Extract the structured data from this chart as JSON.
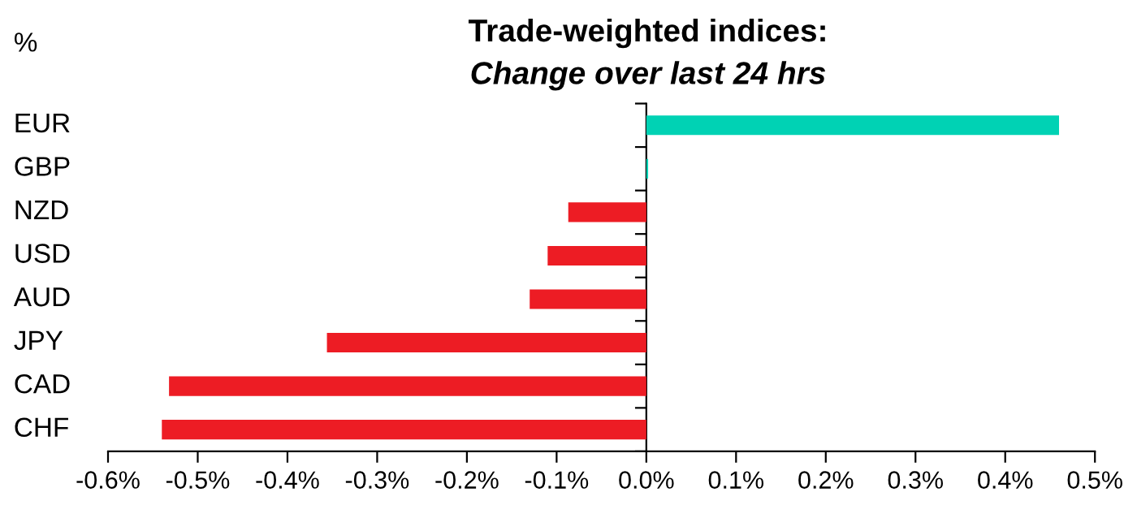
{
  "chart_data": {
    "type": "bar",
    "orientation": "horizontal",
    "title": "Trade-weighted indices:",
    "subtitle": "Change over last 24 hrs",
    "ylabel": "%",
    "categories": [
      "EUR",
      "GBP",
      "NZD",
      "USD",
      "AUD",
      "JPY",
      "CAD",
      "CHF"
    ],
    "values": [
      0.46,
      0.002,
      -0.087,
      -0.11,
      -0.13,
      -0.356,
      -0.532,
      -0.54
    ],
    "colors": [
      "#00d2b4",
      "#00d2b4",
      "#ed1c24",
      "#ed1c24",
      "#ed1c24",
      "#ed1c24",
      "#ed1c24",
      "#ed1c24"
    ],
    "xlim": [
      -0.6,
      0.5
    ],
    "xticks": [
      {
        "value": -0.6,
        "label": "-0.6%"
      },
      {
        "value": -0.5,
        "label": "-0.5%"
      },
      {
        "value": -0.4,
        "label": "-0.4%"
      },
      {
        "value": -0.3,
        "label": "-0.3%"
      },
      {
        "value": -0.2,
        "label": "-0.2%"
      },
      {
        "value": -0.1,
        "label": "-0.1%"
      },
      {
        "value": 0.0,
        "label": "0.0%"
      },
      {
        "value": 0.1,
        "label": "0.1%"
      },
      {
        "value": 0.2,
        "label": "0.2%"
      },
      {
        "value": 0.3,
        "label": "0.3%"
      },
      {
        "value": 0.4,
        "label": "0.4%"
      },
      {
        "value": 0.5,
        "label": "0.5%"
      }
    ],
    "legend": false
  }
}
